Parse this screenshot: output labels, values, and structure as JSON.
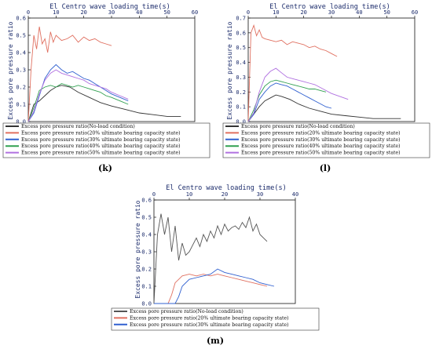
{
  "chart_data": [
    {
      "type": "line",
      "panel_label": "(k)",
      "title": "El Centro wave loading time(s)",
      "ylabel": "Excess pore pressure ratio",
      "xlim": [
        0,
        60
      ],
      "ylim": [
        0,
        0.6
      ],
      "xticks": [
        0,
        10,
        20,
        30,
        40,
        50,
        60
      ],
      "yticks": [
        0.0,
        0.1,
        0.2,
        0.3,
        0.4,
        0.5,
        0.6
      ],
      "ytick_labels": [
        "0.0",
        "0.1",
        "0.2",
        "0.3",
        "0.4",
        "0.5",
        "0.6"
      ],
      "legend_placement": "bottom",
      "series": [
        {
          "name": "Excess pore pressure ratio(No-load condition)",
          "color": "#333333",
          "x": [
            0,
            2,
            4,
            6,
            8,
            10,
            12,
            15,
            18,
            22,
            26,
            30,
            35,
            40,
            45,
            50,
            55
          ],
          "y": [
            0,
            0.1,
            0.12,
            0.15,
            0.18,
            0.2,
            0.21,
            0.2,
            0.17,
            0.14,
            0.11,
            0.09,
            0.07,
            0.05,
            0.04,
            0.03,
            0.03
          ]
        },
        {
          "name": "Excess pore pressure ratio(20% ultimate bearing capacity state)",
          "color": "#e07060",
          "x": [
            0,
            1,
            2,
            3,
            4,
            5,
            6,
            7,
            8,
            9,
            10,
            12,
            14,
            16,
            18,
            20,
            22,
            24,
            26,
            28,
            30
          ],
          "y": [
            0,
            0.3,
            0.5,
            0.42,
            0.55,
            0.45,
            0.48,
            0.4,
            0.52,
            0.46,
            0.5,
            0.47,
            0.48,
            0.5,
            0.46,
            0.49,
            0.47,
            0.48,
            0.46,
            0.45,
            0.44
          ]
        },
        {
          "name": "Excess pore pressure ratio(30% ultimate bearing capacity state)",
          "color": "#3060d0",
          "x": [
            0,
            2,
            4,
            6,
            8,
            10,
            12,
            14,
            16,
            18,
            20,
            22,
            24,
            26,
            28,
            30,
            33,
            36
          ],
          "y": [
            0,
            0.05,
            0.15,
            0.25,
            0.3,
            0.33,
            0.3,
            0.28,
            0.29,
            0.27,
            0.25,
            0.24,
            0.22,
            0.2,
            0.18,
            0.16,
            0.14,
            0.12
          ]
        },
        {
          "name": "Excess pore pressure ratio(40% ultimate bearing capacity state)",
          "color": "#30a050",
          "x": [
            0,
            2,
            4,
            6,
            8,
            10,
            12,
            14,
            16,
            18,
            20,
            22,
            24,
            26,
            28,
            30,
            33,
            36
          ],
          "y": [
            0,
            0.08,
            0.18,
            0.2,
            0.21,
            0.2,
            0.22,
            0.21,
            0.2,
            0.21,
            0.2,
            0.19,
            0.18,
            0.17,
            0.15,
            0.14,
            0.12,
            0.1
          ]
        },
        {
          "name": "Excess pore pressure ratio(50% ultimate bearing capacity state)",
          "color": "#b070e0",
          "x": [
            0,
            2,
            4,
            6,
            8,
            10,
            12,
            14,
            16,
            18,
            20,
            22,
            24,
            26,
            28,
            30,
            33,
            36
          ],
          "y": [
            0,
            0.06,
            0.16,
            0.24,
            0.28,
            0.3,
            0.28,
            0.27,
            0.26,
            0.25,
            0.24,
            0.22,
            0.21,
            0.2,
            0.19,
            0.17,
            0.15,
            0.13
          ]
        }
      ]
    },
    {
      "type": "line",
      "panel_label": "(l)",
      "title": "El Centro wave loading time(s)",
      "ylabel": "Excess pore pressure ratio",
      "xlim": [
        0,
        60
      ],
      "ylim": [
        0,
        0.7
      ],
      "xticks": [
        0,
        10,
        20,
        30,
        40,
        50,
        60
      ],
      "yticks": [
        0.0,
        0.1,
        0.2,
        0.3,
        0.4,
        0.5,
        0.6,
        0.7
      ],
      "ytick_labels": [
        "0.0",
        "0.1",
        "0.2",
        "0.3",
        "0.4",
        "0.5",
        "0.6",
        "0.7"
      ],
      "legend_placement": "bottom",
      "series": [
        {
          "name": "Excess pore pressure ratio(No-load condition)",
          "color": "#333333",
          "x": [
            0,
            2,
            4,
            6,
            8,
            10,
            12,
            15,
            18,
            22,
            26,
            30,
            35,
            40,
            45,
            50,
            55
          ],
          "y": [
            0,
            0.05,
            0.1,
            0.14,
            0.16,
            0.18,
            0.17,
            0.15,
            0.12,
            0.09,
            0.07,
            0.05,
            0.04,
            0.03,
            0.02,
            0.02,
            0.02
          ]
        },
        {
          "name": "Excess pore pressure ratio(20% ultimate bearing capacity state)",
          "color": "#e07060",
          "x": [
            0,
            1,
            2,
            3,
            4,
            5,
            6,
            8,
            10,
            12,
            14,
            16,
            18,
            20,
            22,
            24,
            26,
            28,
            30,
            32
          ],
          "y": [
            0,
            0.6,
            0.65,
            0.58,
            0.62,
            0.57,
            0.56,
            0.55,
            0.54,
            0.55,
            0.52,
            0.54,
            0.53,
            0.52,
            0.5,
            0.51,
            0.49,
            0.48,
            0.46,
            0.44
          ]
        },
        {
          "name": "Excess pore pressure ratio(30% ultimate bearing capacity state)",
          "color": "#3060d0",
          "x": [
            0,
            2,
            4,
            6,
            8,
            10,
            12,
            14,
            16,
            18,
            20,
            22,
            24,
            26,
            28,
            30
          ],
          "y": [
            0,
            0.05,
            0.15,
            0.2,
            0.24,
            0.26,
            0.25,
            0.24,
            0.22,
            0.2,
            0.18,
            0.16,
            0.14,
            0.12,
            0.1,
            0.09
          ]
        },
        {
          "name": "Excess pore pressure ratio(40% ultimate bearing capacity state)",
          "color": "#30a050",
          "x": [
            0,
            2,
            4,
            6,
            8,
            10,
            12,
            14,
            16,
            18,
            20,
            22,
            24,
            26,
            28
          ],
          "y": [
            0,
            0.08,
            0.18,
            0.24,
            0.27,
            0.28,
            0.27,
            0.26,
            0.25,
            0.24,
            0.23,
            0.22,
            0.22,
            0.21,
            0.2
          ]
        },
        {
          "name": "Excess pore pressure ratio(50% ultimate bearing capacity state)",
          "color": "#b070e0",
          "x": [
            0,
            2,
            4,
            6,
            8,
            10,
            12,
            14,
            16,
            18,
            20,
            22,
            24,
            26,
            28,
            30,
            33,
            36
          ],
          "y": [
            0,
            0.06,
            0.2,
            0.3,
            0.34,
            0.36,
            0.33,
            0.3,
            0.29,
            0.28,
            0.27,
            0.26,
            0.25,
            0.23,
            0.21,
            0.19,
            0.17,
            0.15
          ]
        }
      ]
    },
    {
      "type": "line",
      "panel_label": "(m)",
      "title": "El Centro wave loading time(s)",
      "ylabel": "Excess pore pressure ratio",
      "xlim": [
        0,
        40
      ],
      "ylim": [
        0,
        0.6
      ],
      "xticks": [
        0,
        10,
        20,
        30,
        40
      ],
      "yticks": [
        0.0,
        0.1,
        0.2,
        0.3,
        0.4,
        0.5,
        0.6
      ],
      "ytick_labels": [
        "0.0",
        "0.1",
        "0.2",
        "0.3",
        "0.4",
        "0.5",
        "0.6"
      ],
      "legend_placement": "bottom",
      "series": [
        {
          "name": "Excess pore pressure ratio(No-load condition)",
          "color": "#555555",
          "x": [
            0,
            1,
            2,
            3,
            4,
            5,
            6,
            7,
            8,
            9,
            10,
            11,
            12,
            13,
            14,
            15,
            16,
            17,
            18,
            19,
            20,
            21,
            22,
            23,
            24,
            25,
            26,
            27,
            28,
            29,
            30,
            31,
            32
          ],
          "y": [
            0,
            0.4,
            0.52,
            0.4,
            0.5,
            0.3,
            0.45,
            0.25,
            0.35,
            0.28,
            0.3,
            0.34,
            0.38,
            0.33,
            0.4,
            0.36,
            0.42,
            0.38,
            0.45,
            0.4,
            0.46,
            0.42,
            0.44,
            0.45,
            0.43,
            0.47,
            0.44,
            0.5,
            0.42,
            0.46,
            0.4,
            0.38,
            0.36
          ]
        },
        {
          "name": "Excess pore pressure ratio(20% ultimate bearing capacity state)",
          "color": "#e07060",
          "x": [
            0,
            4,
            5,
            6,
            8,
            10,
            12,
            14,
            16,
            18,
            20,
            22,
            24,
            26,
            28,
            30,
            32
          ],
          "y": [
            0,
            0,
            0.05,
            0.12,
            0.16,
            0.17,
            0.16,
            0.17,
            0.16,
            0.17,
            0.16,
            0.15,
            0.14,
            0.13,
            0.12,
            0.11,
            0.1
          ]
        },
        {
          "name": "Excess pore pressure ratio(30% ultimate bearing capacity state)",
          "color": "#3060d0",
          "x": [
            0,
            6,
            7,
            8,
            10,
            12,
            14,
            16,
            18,
            20,
            22,
            24,
            26,
            28,
            30,
            32,
            34
          ],
          "y": [
            0,
            0,
            0.04,
            0.1,
            0.14,
            0.15,
            0.16,
            0.17,
            0.2,
            0.18,
            0.17,
            0.16,
            0.15,
            0.14,
            0.12,
            0.11,
            0.1
          ]
        }
      ]
    }
  ]
}
